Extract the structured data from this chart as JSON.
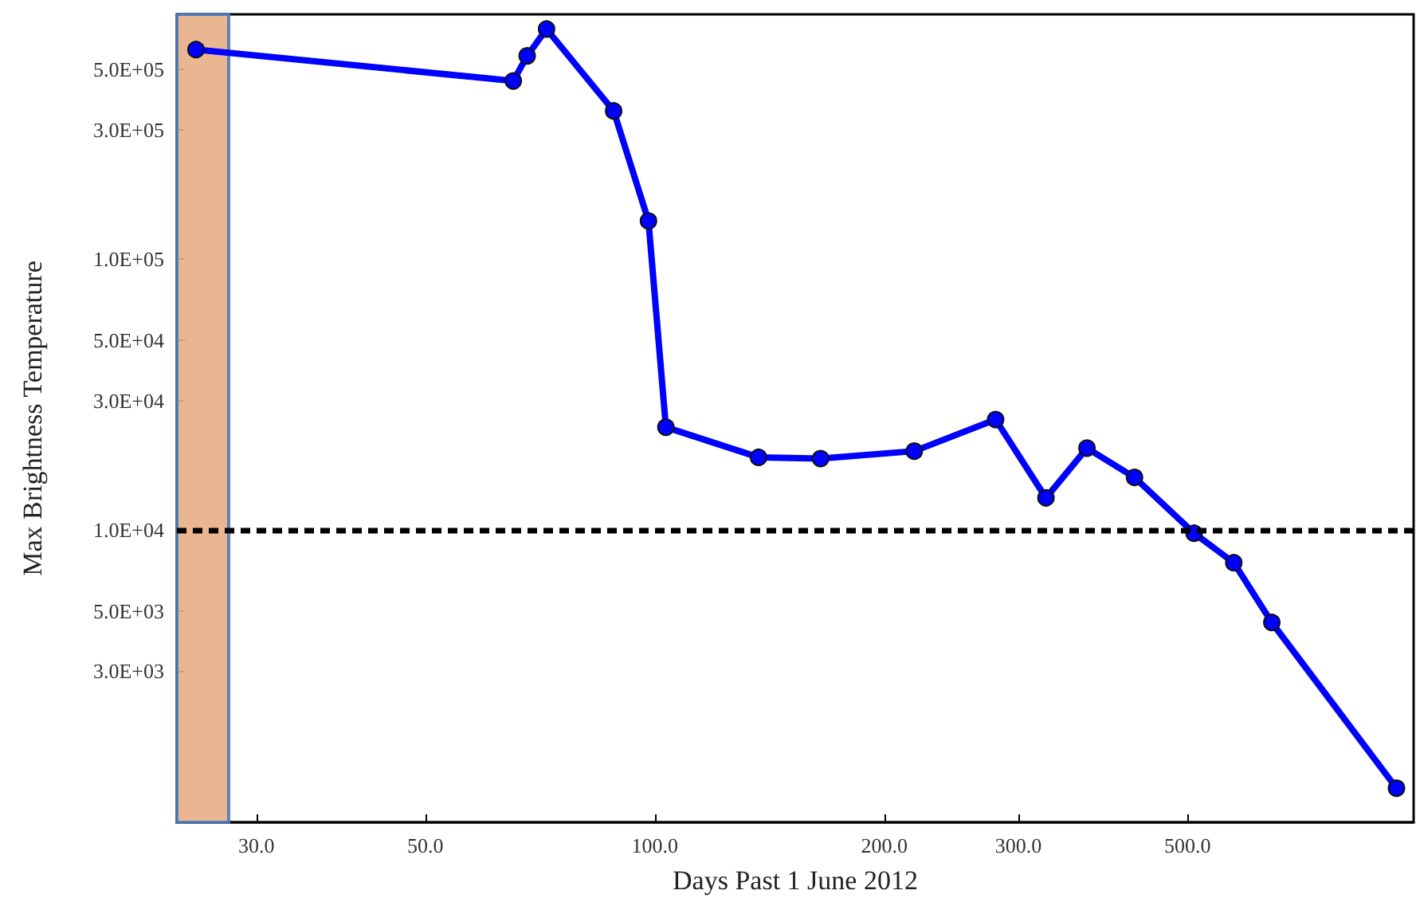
{
  "chart_data": {
    "type": "line",
    "xlabel": "Days Past 1 June 2012",
    "ylabel": "Max Brightness Temperature",
    "log": "xy",
    "xlim": [
      23.6,
      990
    ],
    "ylim": [
      830,
      800000
    ],
    "xticks": [
      {
        "value": 30,
        "label": "30.0"
      },
      {
        "value": 50,
        "label": "50.0"
      },
      {
        "value": 100,
        "label": "100.0"
      },
      {
        "value": 200,
        "label": "200.0"
      },
      {
        "value": 300,
        "label": "300.0"
      },
      {
        "value": 500,
        "label": "500.0"
      }
    ],
    "yticks": [
      {
        "value": 3000,
        "label": "3.0E+03"
      },
      {
        "value": 5000,
        "label": "5.0E+03"
      },
      {
        "value": 10000,
        "label": "1.0E+04"
      },
      {
        "value": 30000,
        "label": "3.0E+04"
      },
      {
        "value": 50000,
        "label": "5.0E+04"
      },
      {
        "value": 100000,
        "label": "1.0E+05"
      },
      {
        "value": 300000,
        "label": "3.0E+05"
      },
      {
        "value": 500000,
        "label": "5.0E+05"
      }
    ],
    "series": [
      {
        "color": "#0000ff",
        "x": [
          25.0,
          65.2,
          68.0,
          72.1,
          88.3,
          98.1,
          103.4,
          136.8,
          165,
          219,
          280,
          326,
          369,
          426,
          510,
          575,
          645,
          940
        ],
        "values": [
          593000,
          454000,
          562000,
          706000,
          352000,
          138000,
          23900,
          18500,
          18300,
          19500,
          25500,
          13100,
          20000,
          15600,
          9700,
          7550,
          4540,
          1110
        ]
      }
    ],
    "marker": "circle",
    "line_style": "solid",
    "ref_lines": [
      {
        "axis": "y",
        "value": 10000,
        "color": "#000000",
        "line_style": "dashed"
      }
    ],
    "bands": [
      {
        "axis": "x",
        "from": 23.6,
        "to": 27.6,
        "color": "#e8ae86"
      }
    ]
  }
}
